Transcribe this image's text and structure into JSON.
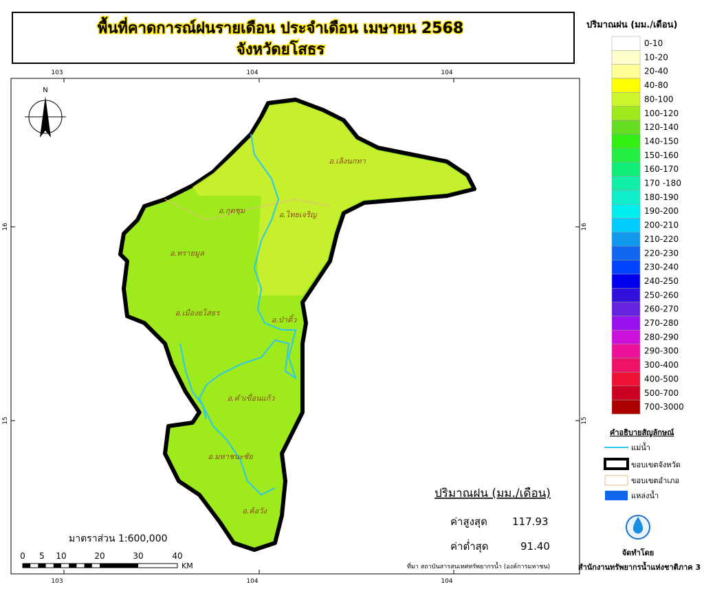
{
  "header": {
    "title": "พื้นที่คาดการณ์ฝนรายเดือน ประจำเดือน เมษายน 2568",
    "subtitle": "จังหวัดยโสธร"
  },
  "grid_labels": {
    "top": [
      "103",
      "104",
      "104"
    ],
    "bottom": [
      "103",
      "104",
      "104"
    ],
    "left": [
      "16",
      "15"
    ],
    "right": [
      "16",
      "15"
    ]
  },
  "north": "N",
  "districts": [
    "อ.เลิงนกทา",
    "อ.กุดชุม",
    "อ.ไทยเจริญ",
    "อ.ทรายมูล",
    "อ.เมืองยโสธร",
    "อ.ป่าติ้ว",
    "อ.คำเขื่อนแก้ว",
    "อ.มหาชนะชัย",
    "อ.ค้อวัง"
  ],
  "stats": {
    "title": "ปริมาณฝน (มม./เดือน)",
    "max_label": "ค่าสูงสุด",
    "max_value": "117.93",
    "min_label": "ค่าต่ำสุด",
    "min_value": "91.40"
  },
  "scale": {
    "label": "มาตราส่วน 1:600,000",
    "ticks": [
      "0",
      "5",
      "10",
      "20",
      "30",
      "40"
    ],
    "unit": "KM"
  },
  "source": "ที่มา  สถาบันสารสนเทศทรัพยากรน้ำ (องค์การมหาชน)",
  "legend": {
    "title": "ปริมาณฝน (มม./เดือน)",
    "classes": [
      {
        "label": "0-10",
        "color": "#ffffff"
      },
      {
        "label": "10-20",
        "color": "#ffffcc"
      },
      {
        "label": "20-40",
        "color": "#ffff99"
      },
      {
        "label": "40-80",
        "color": "#ffff00"
      },
      {
        "label": "80-100",
        "color": "#ccf52a"
      },
      {
        "label": "100-120",
        "color": "#9eea1c"
      },
      {
        "label": "120-140",
        "color": "#66dd22"
      },
      {
        "label": "140-150",
        "color": "#33ee11"
      },
      {
        "label": "150-160",
        "color": "#22ee44"
      },
      {
        "label": "160-170",
        "color": "#11ee77"
      },
      {
        "label": "170 -180",
        "color": "#11eeaa"
      },
      {
        "label": "180-190",
        "color": "#11eecc"
      },
      {
        "label": "190-200",
        "color": "#00eeee"
      },
      {
        "label": "200-210",
        "color": "#00ccff"
      },
      {
        "label": "210-220",
        "color": "#1199ee"
      },
      {
        "label": "220-230",
        "color": "#1166ee"
      },
      {
        "label": "230-240",
        "color": "#0044ff"
      },
      {
        "label": "240-250",
        "color": "#0000ee"
      },
      {
        "label": "250-260",
        "color": "#3311dd"
      },
      {
        "label": "260-270",
        "color": "#6622dd"
      },
      {
        "label": "270-280",
        "color": "#9911ee"
      },
      {
        "label": "280-290",
        "color": "#cc11dd"
      },
      {
        "label": "290-300",
        "color": "#ee1199"
      },
      {
        "label": "300-400",
        "color": "#ee1166"
      },
      {
        "label": "400-500",
        "color": "#ee1133"
      },
      {
        "label": "500-700",
        "color": "#cc0022"
      },
      {
        "label": "700-3000",
        "color": "#aa0000"
      }
    ]
  },
  "symbols": {
    "title": "คำอธิบายสัญลักษณ์",
    "items": [
      "แม่น้ำ",
      "ขอบเขตจังหวัด",
      "ขอบเขตอำเภอ",
      "แหล่งน้ำ"
    ]
  },
  "credits": {
    "label": "จัดทำโดย",
    "org": "สำนักงานทรัพยากรน้ำแห่งชาติภาค 3"
  }
}
